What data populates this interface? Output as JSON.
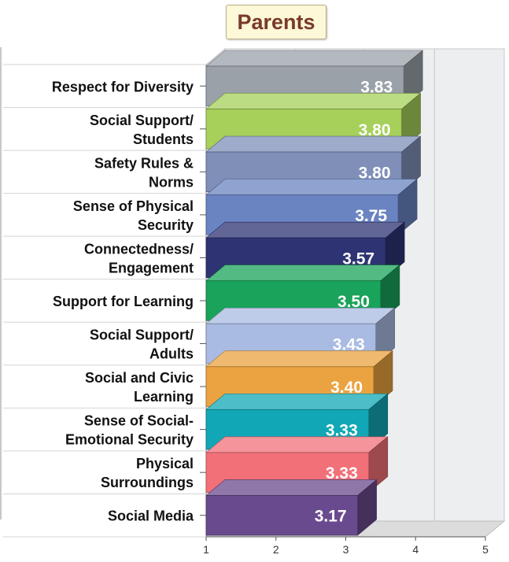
{
  "chart_data": {
    "type": "bar",
    "orientation": "horizontal",
    "title": "Parents",
    "categories": [
      [
        "Respect for Diversity"
      ],
      [
        "Social Support/",
        "Students"
      ],
      [
        "Safety Rules &",
        "Norms"
      ],
      [
        "Sense of Physical",
        "Security"
      ],
      [
        "Connectedness/",
        "Engagement"
      ],
      [
        "Support for Learning"
      ],
      [
        "Social Support/",
        "Adults"
      ],
      [
        "Social and Civic",
        "Learning"
      ],
      [
        "Sense of Social-",
        "Emotional Security"
      ],
      [
        "Physical",
        "Surroundings"
      ],
      [
        "Social Media"
      ]
    ],
    "values": [
      3.83,
      3.8,
      3.8,
      3.75,
      3.57,
      3.5,
      3.43,
      3.4,
      3.33,
      3.33,
      3.17
    ],
    "value_labels": [
      "3.83",
      "3.80",
      "3.80",
      "3.75",
      "3.57",
      "3.50",
      "3.43",
      "3.40",
      "3.33",
      "3.33",
      "3.17"
    ],
    "colors": [
      "#9aa1a9",
      "#a6d05a",
      "#7f8fb8",
      "#6a84c2",
      "#2e3373",
      "#1aa35a",
      "#a9bbe2",
      "#eaa340",
      "#12a7b6",
      "#f27078",
      "#6a4a8e"
    ],
    "xlim": [
      1,
      5
    ],
    "xticks": [
      "1",
      "2",
      "3",
      "4",
      "5"
    ],
    "grid": true,
    "style": "3d"
  }
}
